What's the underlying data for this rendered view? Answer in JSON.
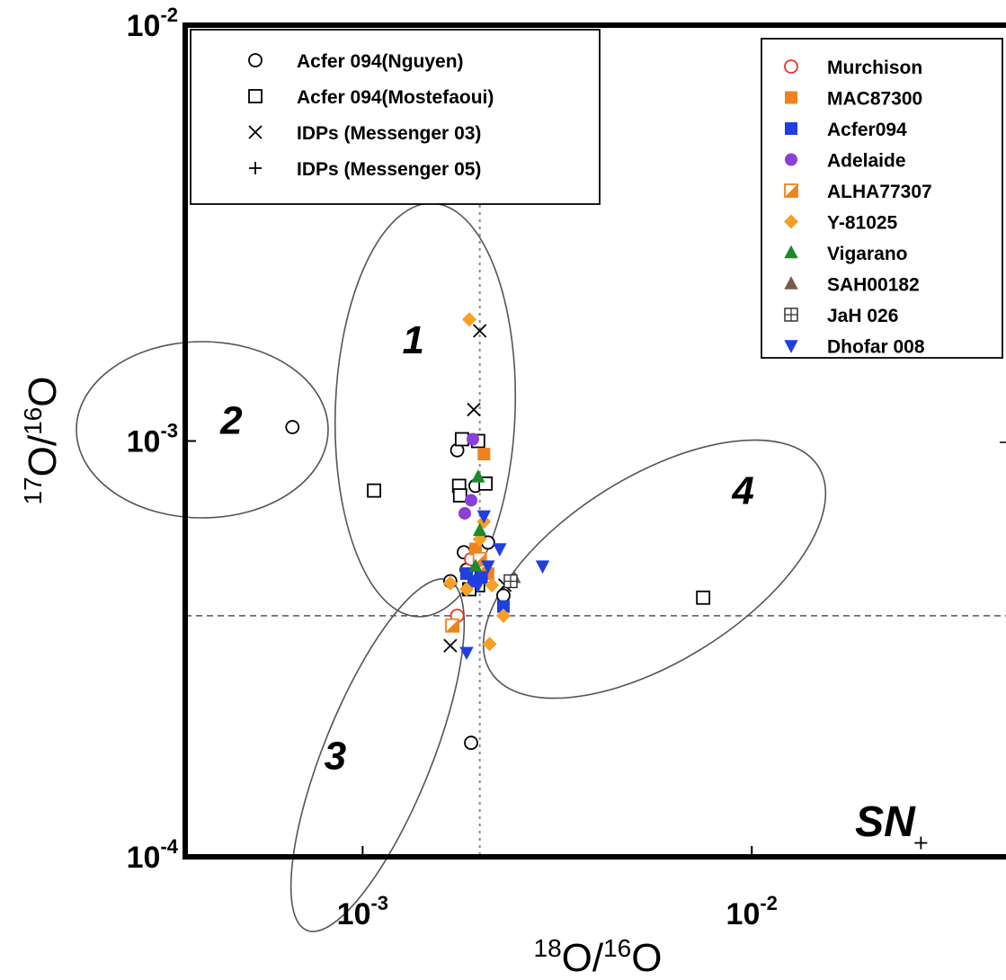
{
  "chart_data": {
    "type": "scatter",
    "xlabel": {
      "base_1": "18",
      "mid": "O/",
      "base_2": "16",
      "tail": "O"
    },
    "ylabel": {
      "base_1": "17",
      "mid": "O/",
      "base_2": "16",
      "tail": "O"
    },
    "xscale": "log",
    "yscale": "log",
    "xlim": [
      0.00035,
      0.045
    ],
    "ylim": [
      0.0001,
      0.01
    ],
    "x_ticks": [
      {
        "value": 0.001,
        "base": "10",
        "exp": "-3"
      },
      {
        "value": 0.01,
        "base": "10",
        "exp": "-2"
      }
    ],
    "y_ticks": [
      {
        "value": 0.0001,
        "base": "10",
        "exp": "-4"
      },
      {
        "value": 0.001,
        "base": "10",
        "exp": "-3"
      },
      {
        "value": 0.01,
        "base": "10",
        "exp": "-2"
      }
    ],
    "grid": false,
    "reference_lines": [
      {
        "orientation": "vertical",
        "x": 0.002,
        "style": "dotted"
      },
      {
        "orientation": "horizontal",
        "y": 0.00038,
        "style": "dashed"
      }
    ],
    "regions": [
      {
        "label": "1",
        "label_at": [
          0.00135,
          0.00175
        ]
      },
      {
        "label": "2",
        "label_at": [
          0.00046,
          0.00112
        ]
      },
      {
        "label": "3",
        "label_at": [
          0.00085,
          0.000175
        ]
      },
      {
        "label": "4",
        "label_at": [
          0.0095,
          0.00076
        ]
      }
    ],
    "annotations": [
      {
        "text": "SN",
        "x": 0.022,
        "y": 0.000122
      }
    ],
    "legends": [
      {
        "position": "top-left",
        "entries": [
          {
            "label": "Acfer 094(Nguyen)",
            "marker": "circle-open",
            "color": "#000000"
          },
          {
            "label": "Acfer 094(Mostefaoui)",
            "marker": "square-open",
            "color": "#000000"
          },
          {
            "label": "IDPs (Messenger 03)",
            "marker": "x",
            "color": "#000000"
          },
          {
            "label": "IDPs (Messenger 05)",
            "marker": "plus",
            "color": "#000000"
          }
        ]
      },
      {
        "position": "top-right",
        "entries": [
          {
            "label": "Murchison",
            "marker": "circle-open",
            "color": "#e8342a"
          },
          {
            "label": "MAC87300",
            "marker": "square-filled",
            "color": "#f0821e"
          },
          {
            "label": "Acfer094",
            "marker": "square-filled",
            "color": "#1f3fe0"
          },
          {
            "label": "Adelaide",
            "marker": "circle-filled",
            "color": "#8a3fd6"
          },
          {
            "label": "ALHA77307",
            "marker": "square-half",
            "color": "#f0821e"
          },
          {
            "label": "Y-81025",
            "marker": "diamond-filled",
            "color": "#f7a026"
          },
          {
            "label": "Vigarano",
            "marker": "triangle-up",
            "color": "#1a8a2a"
          },
          {
            "label": "SAH00182",
            "marker": "triangle-up",
            "color": "#7a5a4a"
          },
          {
            "label": "JaH 026",
            "marker": "square-cross",
            "color": "#333333"
          },
          {
            "label": "Dhofar 008",
            "marker": "triangle-down",
            "color": "#1f3fe0"
          }
        ]
      }
    ],
    "series": [
      {
        "name": "Acfer 094(Nguyen)",
        "marker": "circle-open",
        "color": "#000000",
        "points": [
          [
            0.00066,
            0.00108
          ],
          [
            0.00175,
            0.00095
          ],
          [
            0.00182,
            0.00054
          ],
          [
            0.00168,
            0.00046
          ],
          [
            0.00185,
            0.00049
          ],
          [
            0.0019,
            0.000188
          ],
          [
            0.0023,
            0.000425
          ],
          [
            0.0021,
            0.00057
          ],
          [
            0.00195,
            0.00078
          ]
        ]
      },
      {
        "name": "Acfer 094(Mostefaoui)",
        "marker": "square-open",
        "color": "#000000",
        "points": [
          [
            0.00107,
            0.00076
          ],
          [
            0.0018,
            0.00101
          ],
          [
            0.00198,
            0.001
          ],
          [
            0.00207,
            0.00079
          ],
          [
            0.00177,
            0.00078
          ],
          [
            0.00178,
            0.00074
          ],
          [
            0.00198,
            0.00045
          ],
          [
            0.00188,
            0.00044
          ],
          [
            0.0075,
            0.00042
          ]
        ]
      },
      {
        "name": "IDPs (Messenger 03)",
        "marker": "x",
        "color": "#000000",
        "points": [
          [
            0.002,
            0.00184
          ],
          [
            0.00193,
            0.00119
          ],
          [
            0.00168,
            0.000322
          ],
          [
            0.00232,
            0.00045
          ]
        ]
      },
      {
        "name": "IDPs (Messenger 05)",
        "marker": "plus",
        "color": "#000000",
        "points": [
          [
            0.0272,
            0.000108
          ],
          [
            0.00195,
            0.00047
          ]
        ]
      },
      {
        "name": "Murchison",
        "marker": "circle-open",
        "color": "#e8342a",
        "points": [
          [
            0.00175,
            0.00038
          ],
          [
            0.0019,
            0.00052
          ]
        ]
      },
      {
        "name": "MAC87300",
        "marker": "square-filled",
        "color": "#f0821e",
        "points": [
          [
            0.00205,
            0.00093
          ],
          [
            0.0021,
            0.00048
          ],
          [
            0.00195,
            0.00055
          ]
        ]
      },
      {
        "name": "Acfer094",
        "marker": "square-filled",
        "color": "#1f3fe0",
        "points": [
          [
            0.00193,
            0.00046
          ],
          [
            0.00202,
            0.00047
          ],
          [
            0.0023,
            0.0004
          ],
          [
            0.00185,
            0.00048
          ]
        ]
      },
      {
        "name": "Adelaide",
        "marker": "circle-filled",
        "color": "#8a3fd6",
        "points": [
          [
            0.00192,
            0.00101
          ],
          [
            0.0019,
            0.00072
          ],
          [
            0.00183,
            0.00067
          ]
        ]
      },
      {
        "name": "ALHA77307",
        "marker": "square-half",
        "color": "#f0821e",
        "points": [
          [
            0.0017,
            0.00036
          ],
          [
            0.002,
            0.00052
          ]
        ]
      },
      {
        "name": "Y-81025",
        "marker": "diamond-filled",
        "color": "#f7a026",
        "points": [
          [
            0.00188,
            0.00196
          ],
          [
            0.00168,
            0.000455
          ],
          [
            0.0023,
            0.00038
          ],
          [
            0.00212,
            0.000325
          ],
          [
            0.002,
            0.00058
          ],
          [
            0.00185,
            0.00044
          ],
          [
            0.00215,
            0.00045
          ],
          [
            0.00205,
            0.00064
          ]
        ]
      },
      {
        "name": "Vigarano",
        "marker": "triangle-up",
        "color": "#1a8a2a",
        "points": [
          [
            0.00198,
            0.00082
          ],
          [
            0.002,
            0.00061
          ],
          [
            0.00195,
            0.0005
          ]
        ]
      },
      {
        "name": "SAH00182",
        "marker": "triangle-up",
        "color": "#7a5a4a",
        "points": [
          [
            0.00245,
            0.00047
          ]
        ]
      },
      {
        "name": "JaH 026",
        "marker": "square-cross",
        "color": "#333333",
        "points": [
          [
            0.0024,
            0.00046
          ]
        ]
      },
      {
        "name": "Dhofar 008",
        "marker": "triangle-down",
        "color": "#1f3fe0",
        "points": [
          [
            0.00225,
            0.00055
          ],
          [
            0.0029,
            0.0005
          ],
          [
            0.00185,
            0.00031
          ],
          [
            0.00205,
            0.00066
          ],
          [
            0.0021,
            0.0005
          ],
          [
            0.00198,
            0.00045
          ]
        ]
      }
    ]
  }
}
